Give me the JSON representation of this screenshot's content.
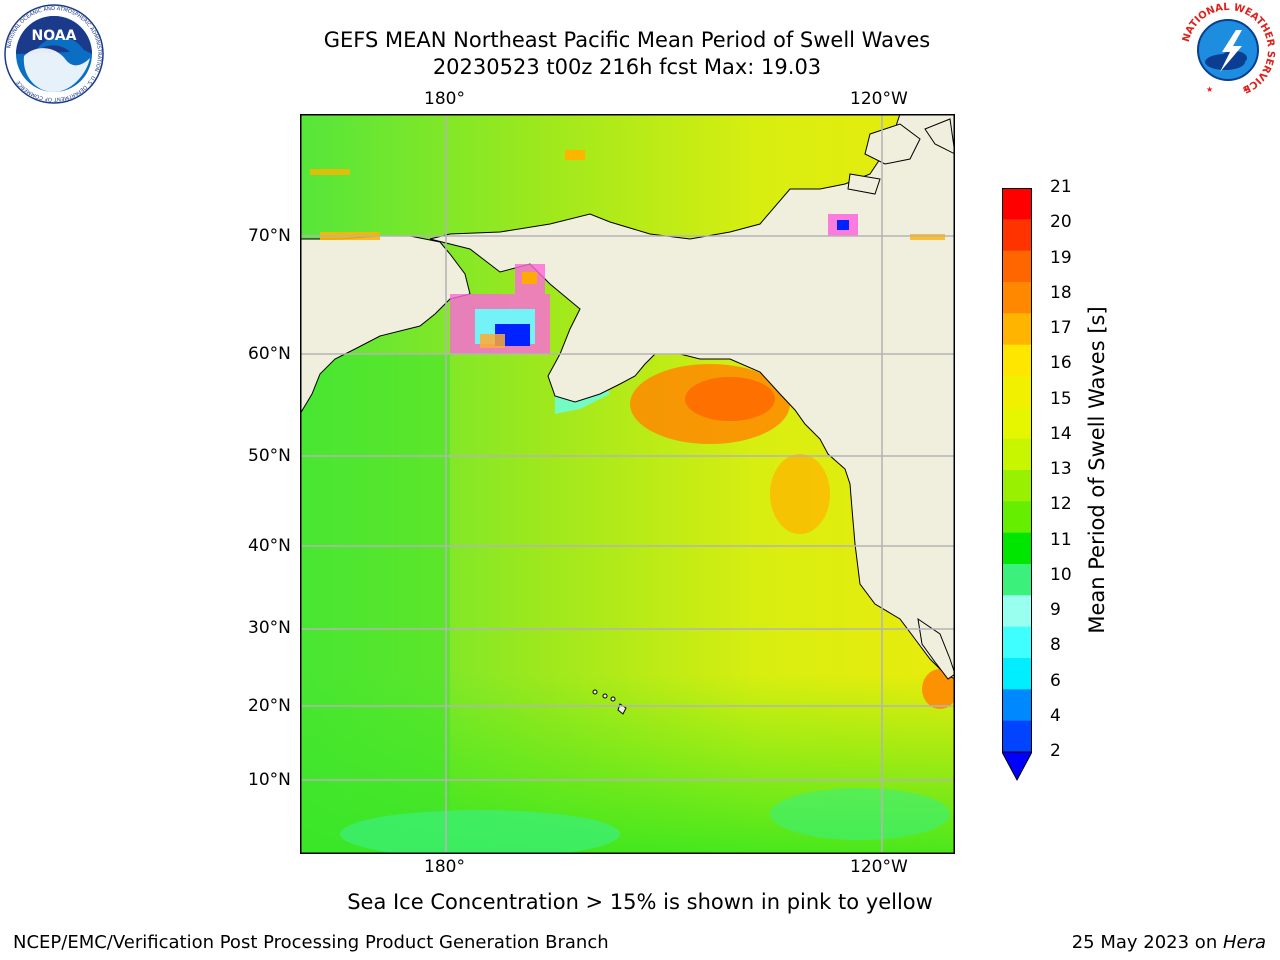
{
  "header": {
    "title_line1": "GEFS MEAN Northeast Pacific Mean Period of Swell Waves",
    "title_line2": "20230523 t00z 216h fcst   Max: 19.03"
  },
  "logos": {
    "noaa_text": "NOAA",
    "noaa_ring": "NATIONAL OCEANIC AND ATMOSPHERIC ADMINISTRATION · U.S. DEPARTMENT OF COMMERCE",
    "nws_ring": "NATIONAL WEATHER SERVICE"
  },
  "map": {
    "top_ticks": [
      "180°",
      "120°W"
    ],
    "bottom_ticks": [
      "180°",
      "120°W"
    ],
    "lat_ticks": [
      "70°N",
      "60°N",
      "50°N",
      "40°N",
      "30°N",
      "20°N",
      "10°N"
    ],
    "colors": {
      "land": "#f0eedc",
      "ocean_green": "#33e81a",
      "grid": "#b4b4b4"
    }
  },
  "colorbar": {
    "label": "Mean Period of Swell Waves [s]",
    "ticks": [
      "21",
      "20",
      "19",
      "18",
      "17",
      "16",
      "15",
      "14",
      "13",
      "12",
      "11",
      "10",
      "9",
      "8",
      "6",
      "4",
      "2"
    ],
    "colors": [
      "#ff0000",
      "#ff3300",
      "#ff6600",
      "#ff8800",
      "#ffb400",
      "#ffe600",
      "#f0f000",
      "#e6f500",
      "#c8f500",
      "#99f000",
      "#66ee00",
      "#00e600",
      "#3cf07c",
      "#99ffee",
      "#40ffff",
      "#00eeff",
      "#0088ff",
      "#0044ff"
    ],
    "extend_color": "#0000ff"
  },
  "footer": {
    "sea_ice_note": "Sea Ice Concentration > 15% is shown in pink to yellow",
    "left": "NCEP/EMC/Verification Post Processing Product Generation Branch",
    "right_prefix": "25 May 2023 on ",
    "right_host": "Hera"
  }
}
